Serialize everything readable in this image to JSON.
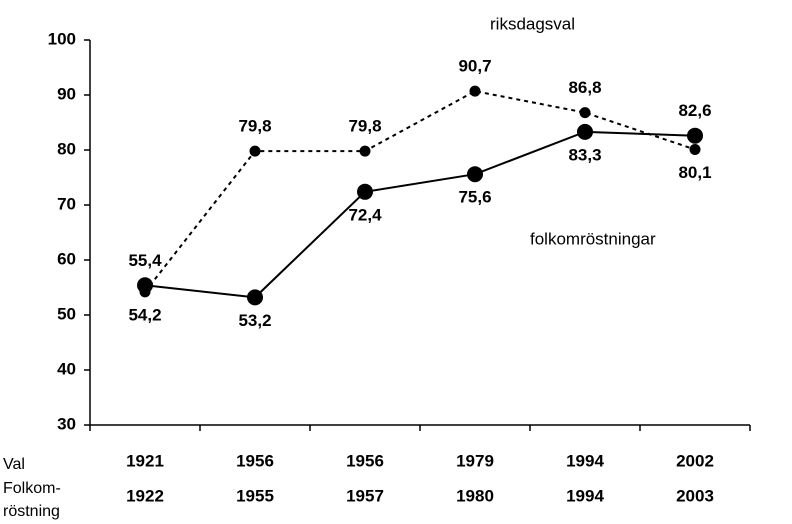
{
  "chart_data": {
    "type": "line",
    "categories": [
      "1921",
      "1956",
      "1956",
      "1979",
      "1994",
      "2002"
    ],
    "categories2": [
      "1922",
      "1955",
      "1957",
      "1980",
      "1994",
      "2003"
    ],
    "row_labels": [
      "Val",
      "Folkom-",
      "röstning"
    ],
    "series": [
      {
        "name": "riksdagsval",
        "color": "#000000",
        "dashed": true,
        "values": [
          54.2,
          79.8,
          79.8,
          90.7,
          86.8,
          80.1
        ],
        "value_labels": [
          "54,2",
          "79,8",
          "79,8",
          "90,7",
          "86,8",
          "80,1"
        ]
      },
      {
        "name": "folkomröstningar",
        "color": "#000000",
        "dashed": false,
        "values": [
          55.4,
          53.2,
          72.4,
          75.6,
          83.3,
          82.6
        ],
        "value_labels": [
          "55,4",
          "53,2",
          "72,4",
          "75,6",
          "83,3",
          "82,6"
        ]
      }
    ],
    "ylim": [
      30,
      100
    ],
    "yticks": [
      30,
      40,
      50,
      60,
      70,
      80,
      90,
      100
    ],
    "grid": false
  }
}
